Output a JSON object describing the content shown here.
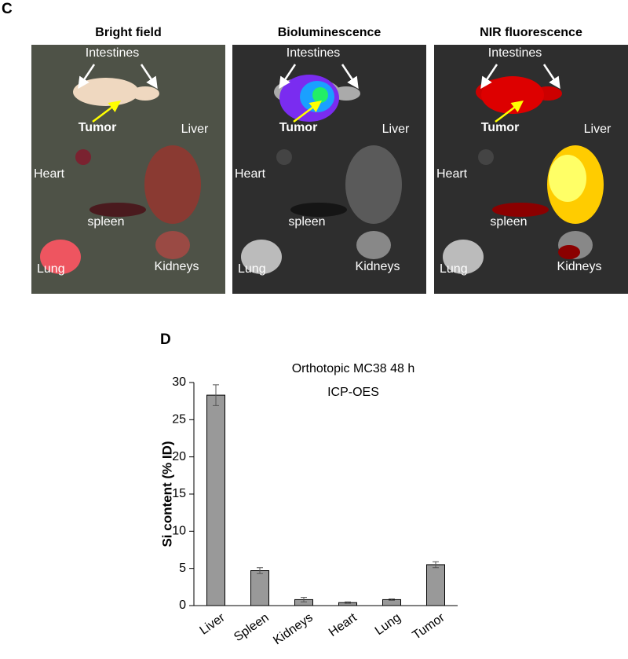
{
  "panel_c": {
    "label": "C",
    "panels": [
      {
        "title": "Bright field",
        "labels": [
          "Intestines",
          "Tumor",
          "Liver",
          "Heart",
          "spleen",
          "Lung",
          "Kidneys"
        ]
      },
      {
        "title": "Bioluminescence",
        "labels": [
          "Intestines",
          "Tumor",
          "Liver",
          "Heart",
          "spleen",
          "Lung",
          "Kidneys"
        ]
      },
      {
        "title": "NIR fluorescence",
        "labels": [
          "Intestines",
          "Tumor",
          "Liver",
          "Heart",
          "spleen",
          "Lung",
          "Kidneys"
        ]
      }
    ]
  },
  "panel_d_label": "D",
  "chart_data": {
    "type": "bar",
    "title": [
      "Orthotopic MC38 48 h",
      "ICP-OES"
    ],
    "ylabel": "Si content (% ID)",
    "categories": [
      "Liver",
      "Spleen",
      "Kidneys",
      "Heart",
      "Lung",
      "Tumor"
    ],
    "values": [
      28.3,
      4.7,
      0.8,
      0.4,
      0.8,
      5.5
    ],
    "errors": [
      1.4,
      0.4,
      0.3,
      0.1,
      0.1,
      0.4
    ],
    "color": "#999999",
    "ylim": [
      0,
      30
    ],
    "yticks": [
      0,
      5,
      10,
      15,
      20,
      25,
      30
    ]
  }
}
